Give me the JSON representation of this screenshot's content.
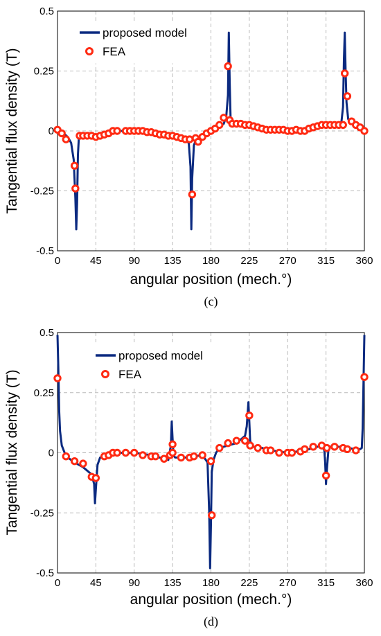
{
  "chart_data": [
    {
      "type": "line",
      "caption": "(c)",
      "ylabel": "Tangential flux density (T)",
      "xlabel": "angular position (mech.°)",
      "xlim": [
        0,
        360
      ],
      "ylim": [
        -0.5,
        0.5
      ],
      "xticks": [
        0,
        45,
        90,
        135,
        180,
        225,
        270,
        315,
        360
      ],
      "yticks": [
        0.5,
        0.25,
        0,
        -0.25,
        -0.5
      ],
      "ytick_labels": [
        "0.5",
        "0.25",
        "0",
        "-0.25",
        "-0.5"
      ],
      "grid": true,
      "legend_position": "top-left",
      "series": [
        {
          "name": "proposed model",
          "style": "line",
          "color": "#0b2a80",
          "x": [
            0,
            4,
            8,
            12,
            16,
            19,
            21,
            22,
            23,
            24,
            25,
            27,
            30,
            40,
            50,
            60,
            70,
            80,
            90,
            100,
            110,
            120,
            130,
            140,
            146,
            150,
            154,
            156,
            157,
            158,
            160,
            162,
            165,
            170,
            180,
            190,
            195,
            198,
            200,
            201,
            202,
            203,
            205,
            210,
            220,
            230,
            240,
            250,
            260,
            270,
            280,
            290,
            300,
            310,
            320,
            325,
            330,
            333,
            335,
            336,
            337,
            338,
            339,
            341,
            343,
            350,
            360
          ],
          "y": [
            0.0,
            -0.005,
            -0.012,
            -0.025,
            -0.05,
            -0.12,
            -0.28,
            -0.41,
            -0.3,
            -0.1,
            -0.03,
            -0.02,
            -0.02,
            -0.02,
            -0.015,
            -0.01,
            0.0,
            0.0,
            0.003,
            0.0,
            -0.01,
            -0.015,
            -0.02,
            -0.03,
            -0.03,
            -0.04,
            -0.05,
            -0.15,
            -0.41,
            -0.2,
            -0.06,
            -0.04,
            -0.03,
            -0.02,
            0.0,
            0.02,
            0.03,
            0.06,
            0.15,
            0.41,
            0.2,
            0.06,
            0.03,
            0.03,
            0.025,
            0.02,
            0.015,
            0.01,
            0.005,
            0.0,
            0.0,
            0.005,
            0.01,
            0.02,
            0.025,
            0.025,
            0.03,
            0.035,
            0.1,
            0.3,
            0.41,
            0.25,
            0.12,
            0.05,
            0.035,
            0.02,
            0.0
          ]
        },
        {
          "name": "FEA",
          "style": "markers",
          "color": "#ff2a12",
          "x": [
            0,
            5,
            10,
            20,
            21,
            26,
            30,
            35,
            40,
            45,
            50,
            55,
            60,
            65,
            70,
            80,
            85,
            90,
            95,
            100,
            105,
            110,
            115,
            120,
            125,
            130,
            135,
            140,
            145,
            150,
            155,
            158,
            162,
            165,
            170,
            175,
            180,
            185,
            190,
            195,
            200,
            202,
            205,
            210,
            215,
            220,
            225,
            230,
            235,
            240,
            245,
            250,
            255,
            260,
            265,
            270,
            275,
            280,
            285,
            290,
            295,
            300,
            305,
            310,
            315,
            320,
            325,
            330,
            335,
            337,
            340,
            345,
            350,
            355,
            360
          ],
          "y": [
            0.005,
            -0.01,
            -0.035,
            -0.145,
            -0.24,
            -0.02,
            -0.02,
            -0.02,
            -0.02,
            -0.025,
            -0.02,
            -0.015,
            -0.01,
            0.0,
            0.0,
            0.0,
            0.0,
            0.0,
            0.0,
            0.0,
            -0.005,
            -0.005,
            -0.01,
            -0.015,
            -0.015,
            -0.02,
            -0.02,
            -0.025,
            -0.03,
            -0.035,
            -0.035,
            -0.265,
            -0.03,
            -0.045,
            -0.025,
            -0.01,
            0.0,
            0.01,
            0.025,
            0.055,
            0.27,
            0.045,
            0.03,
            0.03,
            0.03,
            0.025,
            0.025,
            0.02,
            0.015,
            0.01,
            0.005,
            0.005,
            0.005,
            0.005,
            0.005,
            0.0,
            0.0,
            0.005,
            0.0,
            0.0,
            0.01,
            0.015,
            0.02,
            0.025,
            0.025,
            0.025,
            0.025,
            0.025,
            0.025,
            0.24,
            0.145,
            0.04,
            0.025,
            0.015,
            0.0
          ]
        }
      ]
    },
    {
      "type": "line",
      "caption": "(d)",
      "ylabel": "Tangential flux density (T)",
      "xlabel": "angular position (mech.°)",
      "xlim": [
        0,
        360
      ],
      "ylim": [
        -0.5,
        0.5
      ],
      "xticks": [
        0,
        45,
        90,
        135,
        180,
        225,
        270,
        315,
        360
      ],
      "yticks": [
        0.5,
        0.25,
        0,
        -0.25,
        -0.5
      ],
      "ytick_labels": [
        "0.5",
        "0.25",
        "0",
        "-0.25",
        "-0.5"
      ],
      "grid": true,
      "legend_position": "top-left",
      "series": [
        {
          "name": "proposed model",
          "style": "line",
          "color": "#0b2a80",
          "x": [
            0,
            1,
            2,
            3,
            5,
            10,
            20,
            30,
            40,
            43,
            44,
            45,
            47,
            50,
            60,
            70,
            80,
            90,
            100,
            110,
            120,
            130,
            133,
            134,
            135,
            136,
            138,
            140,
            150,
            160,
            170,
            176,
            178,
            179,
            180,
            181,
            183,
            186,
            190,
            200,
            210,
            220,
            222,
            224,
            225,
            226,
            228,
            230,
            240,
            250,
            260,
            270,
            280,
            290,
            300,
            310,
            313,
            314,
            315,
            316,
            318,
            320,
            330,
            340,
            350,
            355,
            357,
            358,
            359,
            360
          ],
          "y": [
            0.49,
            0.35,
            0.17,
            0.09,
            0.03,
            -0.015,
            -0.04,
            -0.06,
            -0.09,
            -0.13,
            -0.21,
            -0.15,
            -0.05,
            -0.02,
            -0.01,
            0.0,
            0.0,
            0.0,
            -0.005,
            -0.01,
            -0.02,
            -0.03,
            0.03,
            0.13,
            0.06,
            -0.01,
            -0.02,
            -0.02,
            -0.02,
            -0.015,
            -0.01,
            -0.04,
            -0.25,
            -0.48,
            -0.3,
            -0.08,
            -0.03,
            0.0,
            0.02,
            0.03,
            0.04,
            0.07,
            0.11,
            0.21,
            0.13,
            0.05,
            0.03,
            0.025,
            0.02,
            0.01,
            0.005,
            0.0,
            0.005,
            0.01,
            0.02,
            0.03,
            0.01,
            -0.04,
            -0.13,
            -0.07,
            0.02,
            0.025,
            0.025,
            0.02,
            0.015,
            0.015,
            0.02,
            0.1,
            0.3,
            0.49
          ]
        },
        {
          "name": "FEA",
          "style": "markers",
          "color": "#ff2a12",
          "x": [
            0,
            10,
            20,
            30,
            40,
            45,
            55,
            60,
            65,
            70,
            80,
            90,
            100,
            110,
            115,
            125,
            132,
            135,
            135,
            145,
            155,
            160,
            170,
            180,
            181,
            190,
            200,
            210,
            220,
            225,
            226,
            235,
            245,
            250,
            260,
            270,
            275,
            285,
            290,
            300,
            310,
            315,
            316,
            325,
            335,
            340,
            350,
            360
          ],
          "y": [
            0.31,
            -0.015,
            -0.035,
            -0.045,
            -0.1,
            -0.105,
            -0.015,
            -0.01,
            0.0,
            0.0,
            0.0,
            0.0,
            -0.01,
            -0.015,
            -0.015,
            -0.025,
            -0.01,
            0.035,
            0.0,
            -0.02,
            -0.02,
            -0.015,
            -0.01,
            -0.035,
            -0.26,
            0.02,
            0.04,
            0.05,
            0.05,
            0.155,
            0.03,
            0.02,
            0.01,
            0.01,
            0.0,
            0.0,
            0.0,
            0.005,
            0.015,
            0.025,
            0.03,
            -0.095,
            0.02,
            0.025,
            0.02,
            0.015,
            0.01,
            0.315
          ]
        }
      ]
    }
  ]
}
